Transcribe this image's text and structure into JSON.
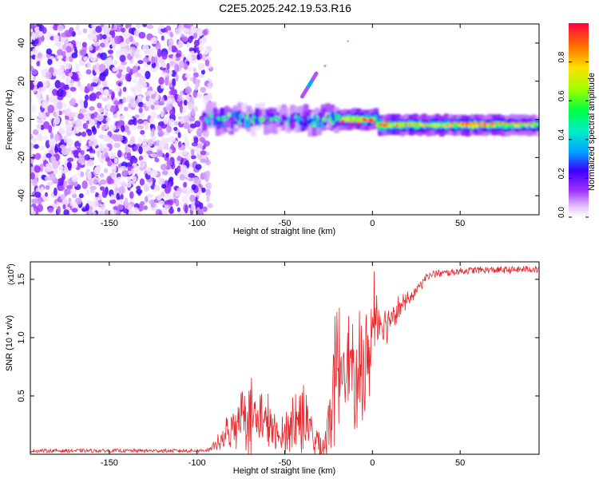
{
  "figure_title": "C2E5.2025.242.19.53.R16",
  "chart_data": [
    {
      "type": "heatmap",
      "title": "C2E5.2025.242.19.53.R16",
      "xlabel": "Height of straight line (km)",
      "ylabel": "Frequency (Hz)",
      "xlim": [
        -195,
        95
      ],
      "ylim": [
        -50,
        50
      ],
      "x_ticks": [
        -150,
        -100,
        -50,
        0,
        50
      ],
      "x_tick_labels": [
        "-150",
        "-100",
        "-50",
        "0",
        "50"
      ],
      "y_ticks": [
        -40,
        -20,
        0,
        20,
        40
      ],
      "y_tick_labels": [
        "-40",
        "-20",
        "0",
        "20",
        "40"
      ],
      "colorbar": {
        "label": "Normalized spectral amplitude",
        "range": [
          0,
          1
        ],
        "ticks": [
          0.0,
          0.2,
          0.4,
          0.6,
          0.8
        ],
        "tick_labels": [
          "0.0",
          "0.2",
          "0.4",
          "0.6",
          "0.8"
        ],
        "colormap": [
          "#ffffff",
          "#9b30ff",
          "#3c00ff",
          "#00c0ff",
          "#00ff70",
          "#9cff00",
          "#ffd000",
          "#ff6000",
          "#ff0030"
        ]
      },
      "features": {
        "noise_region_x": [
          -195,
          -92
        ],
        "noise_value_range": [
          0.02,
          0.25
        ],
        "main_band": [
          {
            "x": -97,
            "freq": 0,
            "amp": 0.45
          },
          {
            "x": -80,
            "freq": 0,
            "amp": 0.55
          },
          {
            "x": -60,
            "freq": 1,
            "amp": 0.5
          },
          {
            "x": -45,
            "freq": -2,
            "amp": 0.55
          },
          {
            "x": -30,
            "freq": -1,
            "amp": 0.5
          },
          {
            "x": -20,
            "freq": -1,
            "amp": 0.6
          },
          {
            "x": -10,
            "freq": -2,
            "amp": 0.85
          },
          {
            "x": 0,
            "freq": -1,
            "amp": 0.85
          },
          {
            "x": 10,
            "freq": -1,
            "amp": 0.8
          },
          {
            "x": 30,
            "freq": -2,
            "amp": 0.7
          },
          {
            "x": 50,
            "freq": -2,
            "amp": 0.75
          },
          {
            "x": 70,
            "freq": -2,
            "amp": 0.75
          },
          {
            "x": 93,
            "freq": -3,
            "amp": 0.55
          }
        ],
        "side_streak": {
          "x_range": [
            -40,
            -32
          ],
          "freq_range": [
            12,
            24
          ],
          "amp": 0.4
        }
      }
    },
    {
      "type": "line",
      "xlabel": "Height of straight line (km)",
      "ylabel": "SNR (10 * v/v)",
      "y_multiplier_label": "(x10",
      "y_multiplier_exponent": "4",
      "y_multiplier_close": ")",
      "xlim": [
        -195,
        95
      ],
      "ylim": [
        0,
        16500
      ],
      "x_ticks": [
        -150,
        -100,
        -50,
        0,
        50
      ],
      "x_tick_labels": [
        "-150",
        "-100",
        "-50",
        "0",
        "50"
      ],
      "y_ticks": [
        5000,
        10000,
        15000
      ],
      "y_tick_labels": [
        "0.5",
        "1.0",
        "1.5"
      ],
      "series": [
        {
          "name": "SNR",
          "color": "#e8262b",
          "envelope": {
            "x": [
              -195,
              -100,
              -92,
              -88,
              -82,
              -78,
              -74,
              -70,
              -66,
              -62,
              -58,
              -55,
              -52,
              -48,
              -44,
              -40,
              -36,
              -33,
              -30,
              -27,
              -24,
              -22,
              -20,
              -18,
              -15,
              -12,
              -10,
              -8,
              -6,
              -4,
              -2,
              0,
              2,
              5,
              8,
              12,
              16,
              20,
              25,
              30,
              35,
              40,
              50,
              60,
              70,
              80,
              90,
              95
            ],
            "base": [
              300,
              300,
              400,
              800,
              1500,
              2500,
              3500,
              3000,
              2500,
              2500,
              2000,
              1200,
              1200,
              2000,
              2500,
              2500,
              1800,
              1000,
              500,
              500,
              3000,
              5000,
              6500,
              7000,
              8000,
              7000,
              4000,
              5000,
              7000,
              6000,
              8000,
              10000,
              12000,
              11000,
              11000,
              12000,
              12500,
              13000,
              14000,
              15000,
              15500,
              15500,
              15700,
              15800,
              15800,
              15800,
              15900,
              15800
            ],
            "spike": [
              150,
              150,
              200,
              800,
              2000,
              3000,
              3500,
              4500,
              2500,
              3000,
              3000,
              1500,
              1500,
              2500,
              3000,
              3500,
              2500,
              2500,
              2000,
              2500,
              5000,
              6000,
              6000,
              5000,
              4500,
              5000,
              3000,
              6000,
              5000,
              5000,
              5000,
              4500,
              5000,
              3000,
              2500,
              1500,
              1000,
              800,
              600,
              500,
              400,
              300,
              300,
              300,
              300,
              300,
              300,
              300
            ]
          }
        }
      ]
    }
  ]
}
